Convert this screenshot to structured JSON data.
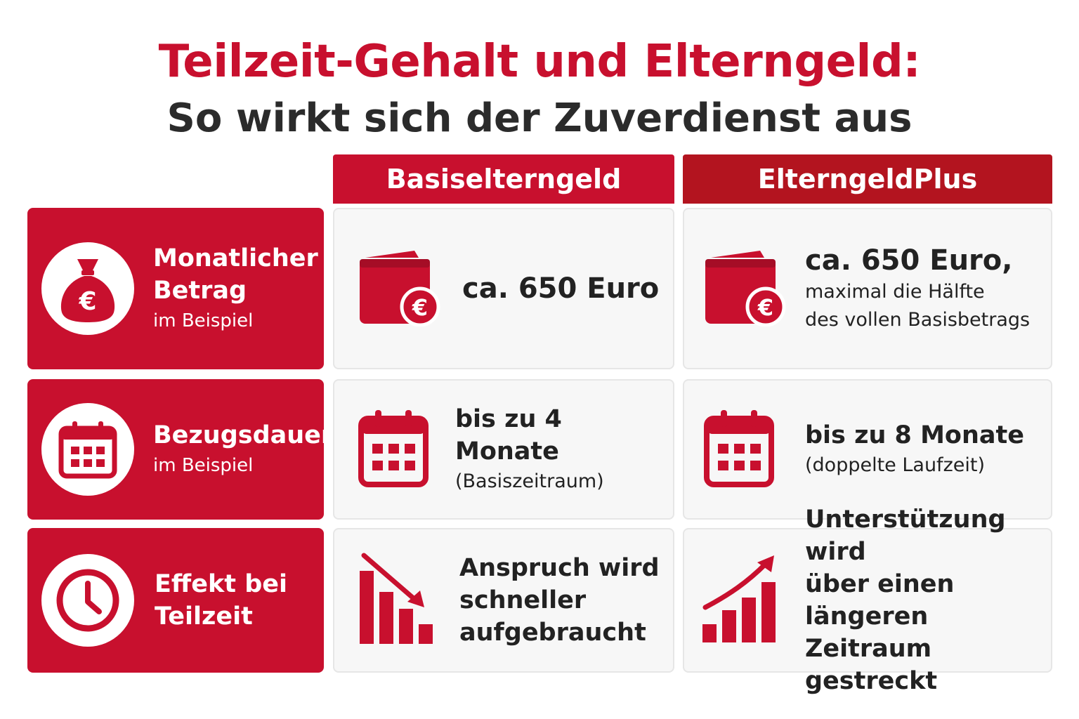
{
  "header": {
    "title": "Teilzeit-Gehalt und Elterngeld:",
    "subtitle": "So wirkt sich der Zuverdienst aus"
  },
  "columns": {
    "basis": "Basiselterngeld",
    "plus": "ElterngeldPlus"
  },
  "rows": {
    "betrag": {
      "label_main_1": "Monatlicher",
      "label_main_2": "Betrag",
      "label_sub": "im Beispiel",
      "basis_value": "ca. 650 Euro",
      "plus_value": "ca. 650 Euro,",
      "plus_note_1": "maximal die Hälfte",
      "plus_note_2": "des vollen Basisbetrags"
    },
    "dauer": {
      "label_main": "Bezugsdauer",
      "label_sub": "im Beispiel",
      "basis_value": "bis zu 4 Monate",
      "basis_note": "(Basiszeitraum)",
      "plus_value": "bis zu 8 Monate",
      "plus_note": "(doppelte Laufzeit)"
    },
    "effekt": {
      "label_main_1": "Effekt bei",
      "label_main_2": "Teilzeit",
      "basis_line_1": "Anspruch wird",
      "basis_line_2": "schneller",
      "basis_line_3": "aufgebraucht",
      "plus_line_1": "Unterstützung wird",
      "plus_line_2": "über einen längeren",
      "plus_line_3": "Zeitraum gestreckt"
    }
  },
  "icons": {
    "betrag": "money-bag-euro-icon",
    "dauer": "calendar-icon",
    "effekt": "clock-icon",
    "wallet": "wallet-euro-icon",
    "down": "chart-decreasing-icon",
    "up": "chart-increasing-icon"
  },
  "colors": {
    "primary_red": "#c8102e",
    "dark_red": "#b3141f",
    "text_dark": "#2b2b2b",
    "cell_bg": "#f7f7f7"
  }
}
